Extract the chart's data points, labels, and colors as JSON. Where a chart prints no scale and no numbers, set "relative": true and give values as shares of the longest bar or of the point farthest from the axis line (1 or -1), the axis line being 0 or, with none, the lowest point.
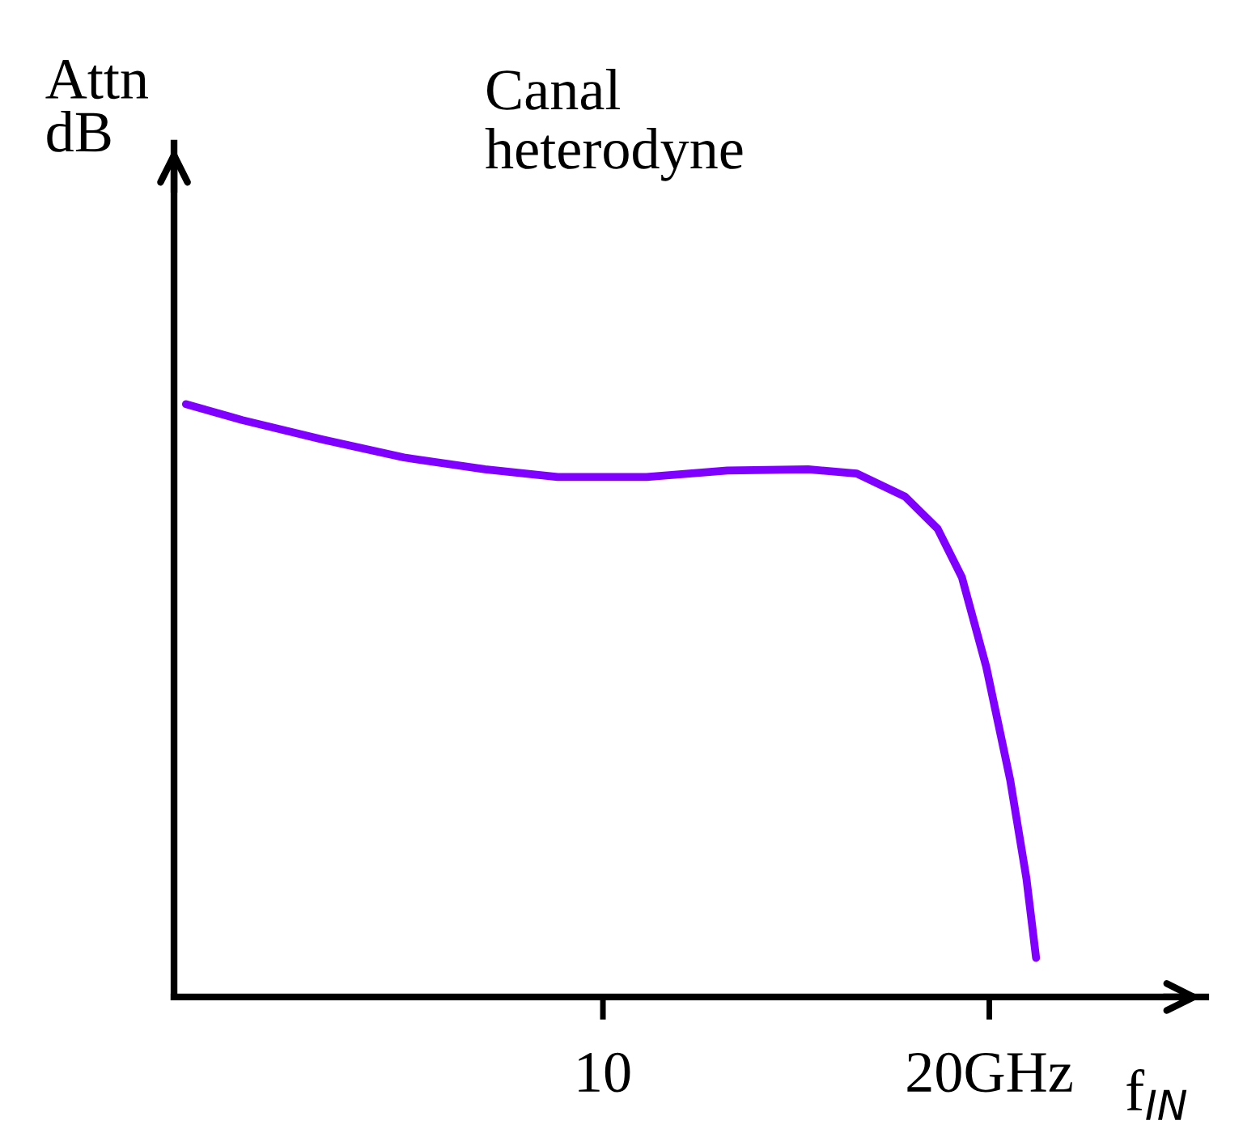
{
  "chart_data": {
    "type": "line",
    "title": "Canal\nheterodyne",
    "ylabel": "Attn\ndB",
    "xlabel": "f$_{IN}$",
    "relative": true,
    "color": "#8000ff",
    "tick_labels": "x",
    "grid": false,
    "legend": false,
    "marker": "none",
    "line_style": "solid",
    "x": [
      -0.79,
      0.67,
      2.76,
      4.85,
      6.95,
      8.83,
      11.13,
      13.22,
      15.31,
      16.57,
      17.82,
      18.66,
      19.29,
      19.92,
      20.54,
      20.96,
      21.21
    ],
    "values": [
      1.0,
      0.973,
      0.94,
      0.91,
      0.89,
      0.877,
      0.877,
      0.888,
      0.89,
      0.883,
      0.844,
      0.79,
      0.708,
      0.557,
      0.366,
      0.2,
      0.066
    ],
    "xlim": [
      -1.1,
      25.6
    ],
    "xticks": [
      10,
      {
        "value": 20,
        "label": "20GHz"
      }
    ]
  }
}
